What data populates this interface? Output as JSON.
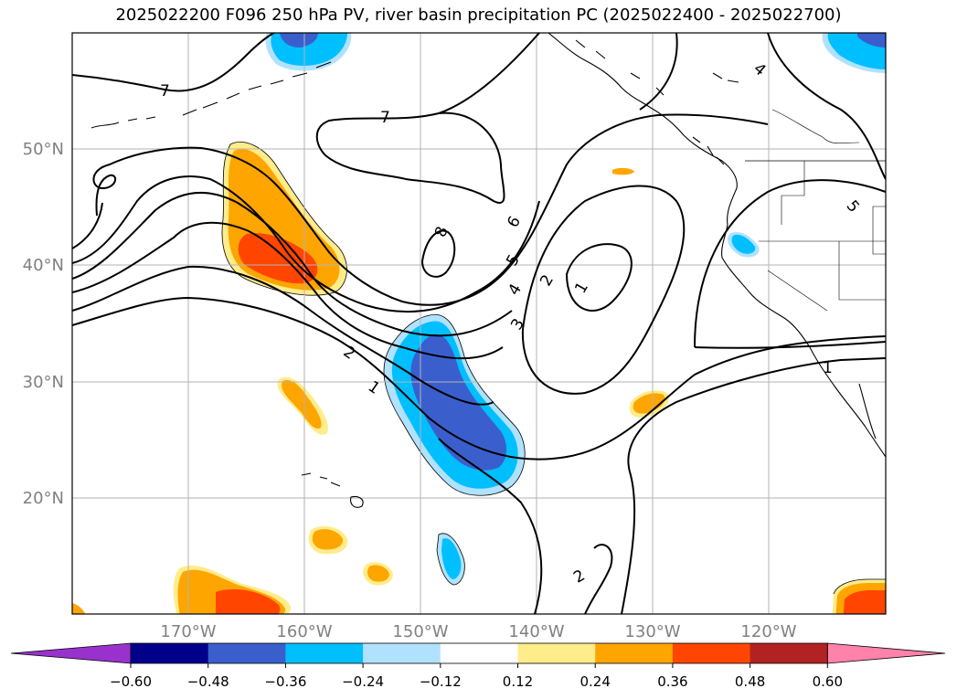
{
  "title": "2025022200 F096 250 hPa PV, river basin precipitation PC (2025022400 - 2025022700)",
  "map": {
    "lon_range": [
      -180,
      -110
    ],
    "lat_range": [
      10,
      60
    ],
    "grid": true,
    "lon_ticks": [
      "170°W",
      "160°W",
      "150°W",
      "140°W",
      "130°W",
      "120°W"
    ],
    "lat_ticks": [
      "50°N",
      "40°N",
      "30°N",
      "20°N"
    ]
  },
  "colorbar": {
    "ticks": [
      "−0.60",
      "−0.48",
      "−0.36",
      "−0.24",
      "−0.12",
      "0.12",
      "0.24",
      "0.36",
      "0.48",
      "0.60"
    ],
    "colors": [
      "#9932cc",
      "#00008b",
      "#3a5fcd",
      "#00bfff",
      "#b0e2ff",
      "#ffffff",
      "#ffec8b",
      "#ffa500",
      "#ff4500",
      "#b22222",
      "#ff82ab"
    ]
  },
  "contour_labels": [
    "7",
    "7",
    "8",
    "6",
    "5",
    "4",
    "3",
    "2",
    "1",
    "2",
    "1",
    "2",
    "4",
    "5",
    "1"
  ]
}
